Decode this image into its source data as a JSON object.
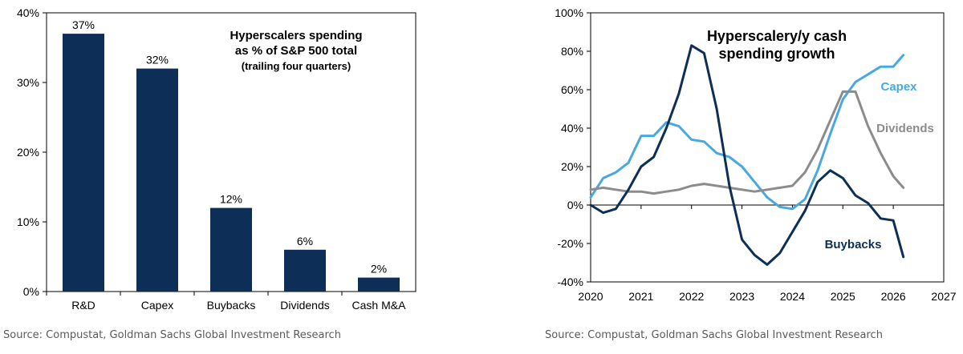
{
  "chart_data": [
    {
      "type": "bar",
      "title": [
        "Hyperscalers spending",
        "as % of S&P 500 total",
        "(trailing four quarters)"
      ],
      "categories": [
        "R&D",
        "Capex",
        "Buybacks",
        "Dividends",
        "Cash M&A"
      ],
      "values": [
        37,
        32,
        12,
        6,
        2
      ],
      "data_labels": [
        "37%",
        "32%",
        "12%",
        "6%",
        "2%"
      ],
      "ylim": [
        0,
        40
      ],
      "yticks": [
        "0%",
        "10%",
        "20%",
        "30%",
        "40%"
      ],
      "bar_color": "#0c2e57",
      "grid": false,
      "source": "Source: Compustat, Goldman Sachs Global Investment Research"
    },
    {
      "type": "line",
      "title": [
        "Hyperscalery/y cash",
        "spending growth"
      ],
      "xlim": [
        2020,
        2027
      ],
      "xticks": [
        "2020",
        "2021",
        "2022",
        "2023",
        "2024",
        "2025",
        "2026",
        "2027"
      ],
      "ylim": [
        -40,
        100
      ],
      "yticks": [
        "-40%",
        "-20%",
        "0%",
        "20%",
        "40%",
        "60%",
        "80%",
        "100%"
      ],
      "grid": false,
      "series": [
        {
          "name": "Capex",
          "color": "#4aa8e0",
          "x": [
            2020.0,
            2020.25,
            2020.5,
            2020.75,
            2021.0,
            2021.25,
            2021.5,
            2021.75,
            2022.0,
            2022.25,
            2022.5,
            2022.75,
            2023.0,
            2023.25,
            2023.5,
            2023.75,
            2024.0,
            2024.25,
            2024.5,
            2024.75,
            2025.0,
            2025.25,
            2025.5,
            2025.75,
            2026.0,
            2026.2
          ],
          "y": [
            4,
            14,
            17,
            22,
            36,
            36,
            43,
            41,
            34,
            33,
            27,
            25,
            20,
            12,
            4,
            -1,
            -2,
            3,
            18,
            37,
            55,
            64,
            68,
            72,
            72,
            78
          ]
        },
        {
          "name": "Dividends",
          "color": "#8c8c8c",
          "x": [
            2020.0,
            2020.25,
            2020.5,
            2020.75,
            2021.0,
            2021.25,
            2021.5,
            2021.75,
            2022.0,
            2022.25,
            2022.5,
            2022.75,
            2023.0,
            2023.25,
            2023.5,
            2023.75,
            2024.0,
            2024.25,
            2024.5,
            2024.75,
            2025.0,
            2025.25,
            2025.5,
            2025.75,
            2026.0,
            2026.2
          ],
          "y": [
            8,
            9,
            8,
            7,
            7,
            6,
            7,
            8,
            10,
            11,
            10,
            9,
            8,
            7,
            8,
            9,
            10,
            17,
            29,
            44,
            59,
            59,
            41,
            27,
            15,
            9
          ]
        },
        {
          "name": "Buybacks",
          "color": "#0c2e57",
          "x": [
            2020.0,
            2020.25,
            2020.5,
            2020.75,
            2021.0,
            2021.25,
            2021.5,
            2021.75,
            2022.0,
            2022.25,
            2022.5,
            2022.75,
            2023.0,
            2023.25,
            2023.5,
            2023.75,
            2024.0,
            2024.25,
            2024.5,
            2024.75,
            2025.0,
            2025.25,
            2025.5,
            2025.75,
            2026.0,
            2026.2
          ],
          "y": [
            0,
            -4,
            -2,
            8,
            20,
            25,
            40,
            58,
            83,
            79,
            50,
            10,
            -18,
            -26,
            -31,
            -25,
            -14,
            -3,
            12,
            18,
            14,
            5,
            1,
            -7,
            -8,
            -27
          ]
        }
      ],
      "source": "Source: Compustat, Goldman Sachs Global Investment Research"
    }
  ]
}
